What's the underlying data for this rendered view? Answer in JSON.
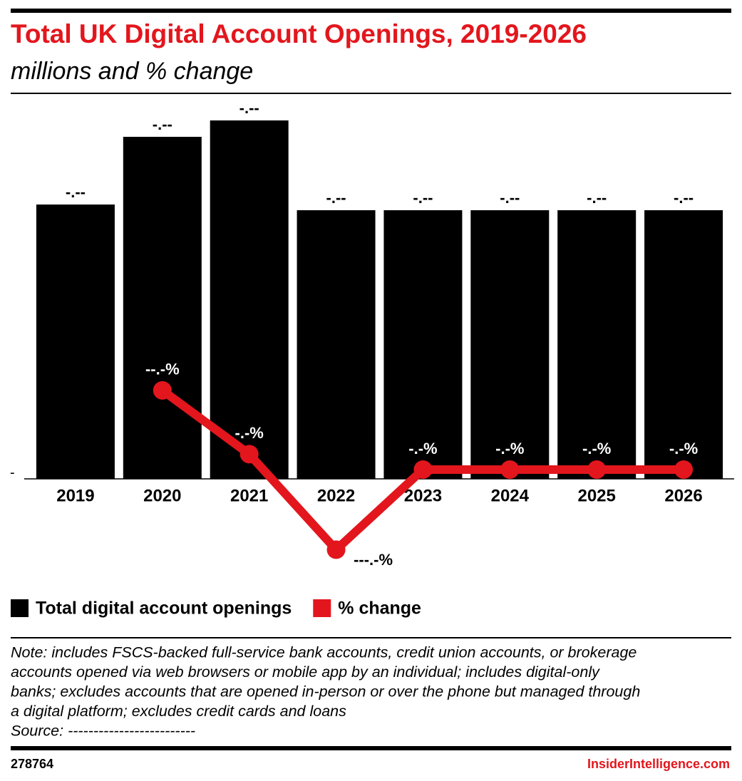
{
  "chart_data": {
    "type": "bar",
    "title": "Total UK Digital Account Openings, 2019-2026",
    "subtitle": "millions and % change",
    "categories": [
      "2019",
      "2020",
      "2021",
      "2022",
      "2023",
      "2024",
      "2025",
      "2026"
    ],
    "series": [
      {
        "name": "Total digital account openings",
        "color": "#000000",
        "type": "bar",
        "values": [
          3.85,
          4.8,
          5.03,
          3.77,
          3.77,
          3.77,
          3.77,
          3.77
        ],
        "value_labels": [
          "-.--",
          "-.--",
          "-.--",
          "-.--",
          "-.--",
          "-.--",
          "-.--",
          "-.--"
        ]
      },
      {
        "name": "% change",
        "color": "#e3161d",
        "type": "line",
        "axis": "y2",
        "values": [
          null,
          24.7,
          4.8,
          -25.0,
          0,
          0,
          0,
          0
        ],
        "value_labels": [
          null,
          "--.-%",
          "-.-%",
          "---.-%",
          "-.-%",
          "-.-%",
          "-.-%",
          "-.-%"
        ]
      }
    ],
    "ylim": [
      0,
      5.2
    ],
    "yticks": [
      {
        "value": 0,
        "label": "-"
      }
    ],
    "y2lim": [
      -2.9,
      112.7
    ],
    "note": [
      "Note: includes FSCS-backed full-service bank accounts, credit union accounts, or brokerage",
      "accounts opened via web browsers or mobile app by an individual; includes digital-only",
      "banks; excludes accounts that are opened in-person or over the phone but managed through",
      "a digital platform; excludes credit cards and loans"
    ],
    "source": "Source: -------------------------",
    "chart_id": "278764",
    "brand": "InsiderIntelligence.com"
  }
}
